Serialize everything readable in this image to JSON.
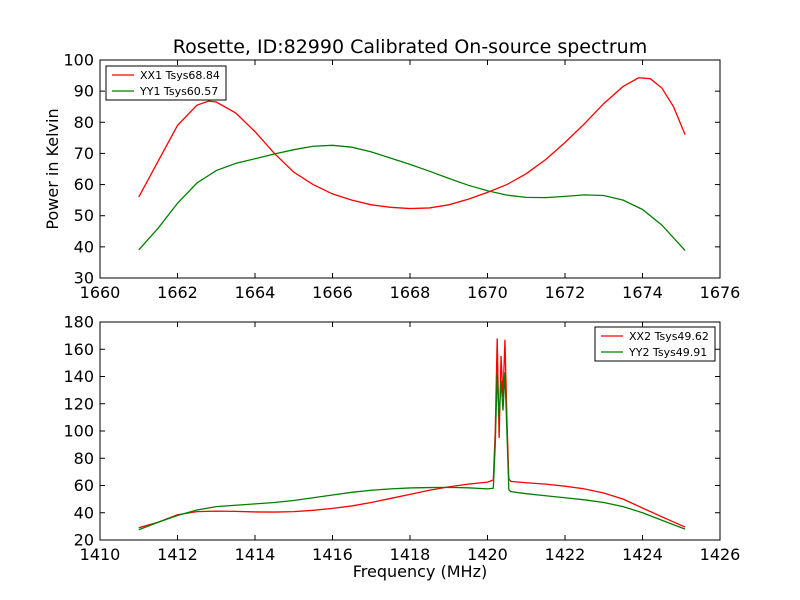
{
  "figure_title": "Rosette, ID:82990 Calibrated On-source spectrum",
  "colors": {
    "xx": "#ff0000",
    "yy": "#008000",
    "axes": "#000000",
    "background": "#ffffff"
  },
  "chart_data": [
    {
      "type": "line",
      "title": "",
      "xlabel": "",
      "ylabel": "Power in Kelvin",
      "xlim": [
        1660,
        1676
      ],
      "ylim": [
        30,
        100
      ],
      "xticks": [
        1660,
        1662,
        1664,
        1666,
        1668,
        1670,
        1672,
        1674,
        1676
      ],
      "yticks": [
        30,
        40,
        50,
        60,
        70,
        80,
        90,
        100
      ],
      "grid": false,
      "legend": "top-left",
      "series": [
        {
          "name": "XX1 Tsys68.84",
          "color": "#ff0000",
          "x": [
            1661.0,
            1661.5,
            1662.0,
            1662.5,
            1662.8,
            1663.0,
            1663.5,
            1664.0,
            1664.5,
            1665.0,
            1665.5,
            1666.0,
            1666.5,
            1667.0,
            1667.5,
            1668.0,
            1668.5,
            1669.0,
            1669.5,
            1670.0,
            1670.5,
            1671.0,
            1671.5,
            1672.0,
            1672.5,
            1673.0,
            1673.5,
            1673.9,
            1674.2,
            1674.5,
            1674.8,
            1675.1
          ],
          "y": [
            56.0,
            67.5,
            79.0,
            85.5,
            86.8,
            86.5,
            83.0,
            77.0,
            70.0,
            64.0,
            60.0,
            57.0,
            55.0,
            53.5,
            52.7,
            52.3,
            52.5,
            53.5,
            55.3,
            57.5,
            60.0,
            63.5,
            68.0,
            73.5,
            79.5,
            86.0,
            91.5,
            94.3,
            94.0,
            91.0,
            85.0,
            76.0
          ]
        },
        {
          "name": "YY1 Tsys60.57",
          "color": "#008000",
          "x": [
            1661.0,
            1661.5,
            1662.0,
            1662.5,
            1663.0,
            1663.5,
            1664.0,
            1664.5,
            1665.0,
            1665.5,
            1666.0,
            1666.5,
            1667.0,
            1667.5,
            1668.0,
            1668.5,
            1669.0,
            1669.5,
            1670.0,
            1670.5,
            1671.0,
            1671.5,
            1672.0,
            1672.5,
            1673.0,
            1673.5,
            1674.0,
            1674.5,
            1675.1
          ],
          "y": [
            39.0,
            46.0,
            54.0,
            60.5,
            64.5,
            66.8,
            68.3,
            69.8,
            71.2,
            72.3,
            72.6,
            72.0,
            70.5,
            68.5,
            66.5,
            64.3,
            62.0,
            59.8,
            58.0,
            56.6,
            55.9,
            55.8,
            56.2,
            56.7,
            56.5,
            55.0,
            52.0,
            47.0,
            38.8
          ]
        }
      ]
    },
    {
      "type": "line",
      "title": "",
      "xlabel": "Frequency (MHz)",
      "ylabel": "",
      "xlim": [
        1410,
        1426
      ],
      "ylim": [
        20,
        180
      ],
      "xticks": [
        1410,
        1412,
        1414,
        1416,
        1418,
        1420,
        1422,
        1424,
        1426
      ],
      "yticks": [
        20,
        40,
        60,
        80,
        100,
        120,
        140,
        160,
        180
      ],
      "grid": false,
      "legend": "top-right",
      "series": [
        {
          "name": "XX2 Tsys49.62",
          "color": "#ff0000",
          "x": [
            1411.0,
            1411.5,
            1412.0,
            1412.5,
            1413.0,
            1413.5,
            1414.0,
            1414.5,
            1415.0,
            1415.5,
            1416.0,
            1416.5,
            1417.0,
            1417.5,
            1418.0,
            1418.5,
            1419.0,
            1419.5,
            1420.0,
            1420.15,
            1420.2,
            1420.25,
            1420.3,
            1420.35,
            1420.4,
            1420.45,
            1420.5,
            1420.55,
            1420.6,
            1421.0,
            1421.5,
            1422.0,
            1422.5,
            1423.0,
            1423.5,
            1424.0,
            1424.5,
            1425.1
          ],
          "y": [
            29.0,
            33.0,
            38.5,
            40.8,
            41.2,
            41.0,
            40.6,
            40.5,
            40.8,
            41.8,
            43.2,
            45.0,
            47.5,
            50.5,
            53.5,
            56.5,
            59.0,
            61.0,
            62.5,
            64.0,
            100.0,
            168.0,
            95.0,
            155.0,
            125.0,
            167.0,
            110.0,
            65.0,
            63.0,
            62.0,
            61.0,
            59.5,
            57.5,
            54.5,
            50.0,
            43.5,
            37.0,
            29.5
          ]
        },
        {
          "name": "YY2 Tsys49.91",
          "color": "#008000",
          "x": [
            1411.0,
            1411.5,
            1412.0,
            1412.5,
            1413.0,
            1413.5,
            1414.0,
            1414.5,
            1415.0,
            1415.5,
            1416.0,
            1416.5,
            1417.0,
            1417.5,
            1418.0,
            1418.5,
            1419.0,
            1419.5,
            1420.0,
            1420.15,
            1420.2,
            1420.25,
            1420.3,
            1420.35,
            1420.4,
            1420.45,
            1420.5,
            1420.55,
            1420.6,
            1421.0,
            1421.5,
            1422.0,
            1422.5,
            1423.0,
            1423.5,
            1424.0,
            1424.5,
            1425.1
          ],
          "y": [
            27.5,
            33.0,
            38.0,
            42.0,
            44.5,
            45.5,
            46.5,
            47.5,
            49.0,
            51.0,
            53.0,
            55.0,
            56.5,
            57.5,
            58.2,
            58.5,
            58.6,
            58.3,
            57.5,
            58.0,
            90.0,
            142.0,
            110.0,
            137.0,
            115.0,
            143.0,
            100.0,
            57.0,
            55.5,
            54.0,
            52.5,
            51.0,
            49.5,
            47.5,
            44.5,
            40.0,
            34.5,
            28.0
          ]
        }
      ]
    }
  ]
}
